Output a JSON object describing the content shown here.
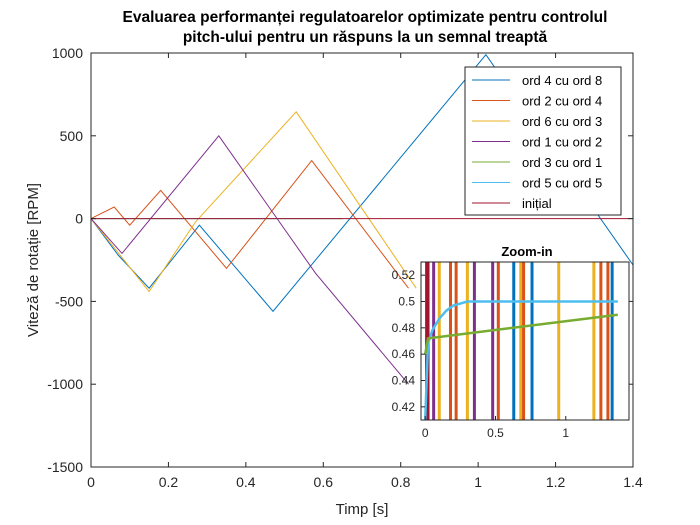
{
  "colors": {
    "blue": "#0072BD",
    "orange": "#D95319",
    "yellow": "#EDB120",
    "purple": "#7E2F8E",
    "green": "#77AC30",
    "cyan": "#4DBEEE",
    "darkred": "#A2142F"
  },
  "chart_data": [
    {
      "type": "line",
      "title": [
        "Evaluarea performanței regulatoarelor optimizate pentru controlul",
        "pitch-ului pentru un răspuns la un semnal treaptă"
      ],
      "xlabel": "Timp [s]",
      "ylabel": "Viteză de rotație [RPM]",
      "xlim": [
        0,
        1.4
      ],
      "ylim": [
        -1500,
        1000
      ],
      "xticks": [
        0,
        0.2,
        0.4,
        0.6,
        0.8,
        1,
        1.2,
        1.4
      ],
      "xtick_labels": [
        "0",
        "0.2",
        "0.4",
        "0.6",
        "0.8",
        "1",
        "1.2",
        "1.4"
      ],
      "yticks": [
        -1500,
        -1000,
        -500,
        0,
        500,
        1000
      ],
      "ytick_labels": [
        "-1500",
        "-1000",
        "-500",
        "0",
        "500",
        "1000"
      ],
      "grid": false,
      "legend_position": "top-right",
      "series": [
        {
          "name": "ord 4 cu ord 8",
          "color": "blue",
          "x": [
            0,
            0.07,
            0.15,
            0.28,
            0.47,
            1.02,
            1.4
          ],
          "y": [
            0,
            -220,
            -420,
            -40,
            -560,
            990,
            -280
          ]
        },
        {
          "name": "ord 2 cu ord 4",
          "color": "orange",
          "x": [
            0,
            0.06,
            0.1,
            0.18,
            0.35,
            0.57,
            0.82
          ],
          "y": [
            0,
            70,
            -40,
            170,
            -300,
            350,
            -420
          ]
        },
        {
          "name": "ord 6 cu ord 3",
          "color": "yellow",
          "x": [
            0,
            0.15,
            0.27,
            0.53,
            0.84
          ],
          "y": [
            0,
            -440,
            -20,
            645,
            -420
          ]
        },
        {
          "name": "ord 1 cu ord 2",
          "color": "purple",
          "x": [
            0,
            0.08,
            0.33,
            0.58,
            0.82
          ],
          "y": [
            0,
            -210,
            500,
            -330,
            -1000
          ]
        },
        {
          "name": "ord 3 cu ord 1",
          "color": "green",
          "x": [
            0,
            0.65
          ],
          "y": [
            0,
            0
          ]
        },
        {
          "name": "ord 5 cu ord 5",
          "color": "cyan",
          "x": [
            0,
            0.65
          ],
          "y": [
            0,
            0
          ]
        },
        {
          "name": "inițial",
          "color": "darkred",
          "x": [
            0,
            1.4
          ],
          "y": [
            0,
            0
          ]
        }
      ]
    },
    {
      "type": "line",
      "title": "Zoom-in",
      "xlim": [
        -0.03,
        1.45
      ],
      "ylim": [
        0.41,
        0.53
      ],
      "xticks": [
        0,
        0.5,
        1
      ],
      "xtick_labels": [
        "0",
        "0.5",
        "1"
      ],
      "yticks": [
        0.42,
        0.44,
        0.46,
        0.48,
        0.5,
        0.52
      ],
      "ytick_labels": [
        "0.42",
        "0.44",
        "0.46",
        "0.48",
        "0.5",
        "0.52"
      ],
      "vertical_lines": [
        {
          "color": "purple",
          "x": [
            0.06,
            0.35,
            0.48
          ]
        },
        {
          "color": "yellow",
          "x": [
            0.1,
            0.3,
            0.68,
            0.95,
            1.2
          ]
        },
        {
          "color": "orange",
          "x": [
            0.18,
            0.22,
            0.52,
            0.7,
            1.25,
            1.3
          ]
        },
        {
          "color": "blue",
          "x": [
            0.63,
            0.76,
            1.33
          ]
        },
        {
          "color": "darkred",
          "x": [
            0.01,
            0.02
          ]
        }
      ],
      "series": [
        {
          "name": "ord 5 cu ord 5",
          "color": "cyan",
          "x": [
            0,
            0.02,
            0.05,
            0.1,
            0.15,
            0.2,
            0.3,
            0.4,
            0.6,
            1.0,
            1.37
          ],
          "y": [
            0.41,
            0.468,
            0.478,
            0.487,
            0.493,
            0.497,
            0.5,
            0.5,
            0.5,
            0.5,
            0.5
          ]
        },
        {
          "name": "ord 3 cu ord 1",
          "color": "green",
          "x": [
            0,
            0.02,
            1.37
          ],
          "y": [
            0.46,
            0.472,
            0.49
          ]
        }
      ]
    }
  ]
}
